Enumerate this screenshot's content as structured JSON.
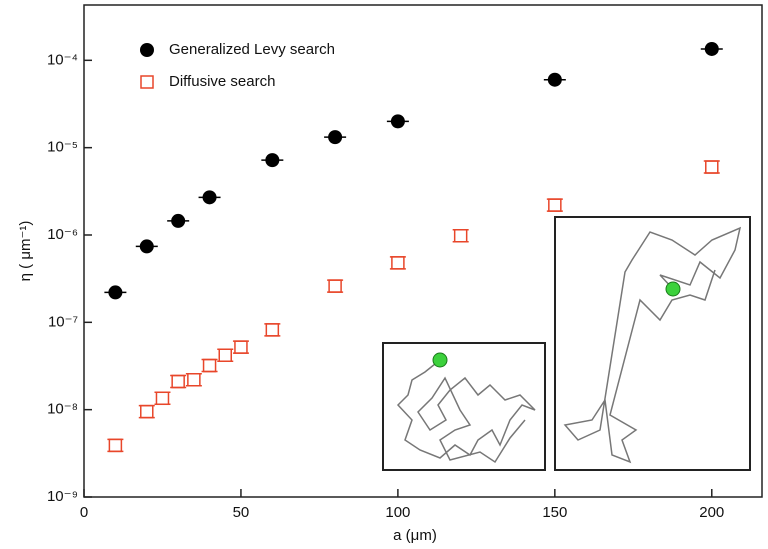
{
  "chart_data": {
    "type": "scatter",
    "xlabel": "a (μm)",
    "ylabel": "η ( μm⁻¹)",
    "xlim": [
      0,
      216
    ],
    "xticks": [
      0,
      50,
      100,
      150,
      200
    ],
    "ylim": [
      1e-09,
      0.00043
    ],
    "log_y": true,
    "yticks": [
      {
        "value": 1e-09,
        "label": "10⁻⁹"
      },
      {
        "value": 1e-08,
        "label": "10⁻⁸"
      },
      {
        "value": 1e-07,
        "label": "10⁻⁷"
      },
      {
        "value": 1e-06,
        "label": "10⁻⁶"
      },
      {
        "value": 1e-05,
        "label": "10⁻⁵"
      },
      {
        "value": 0.0001,
        "label": "10⁻⁴"
      }
    ],
    "legend": "upper left",
    "series": [
      {
        "name": "Generalized Levy search",
        "color": "#000000",
        "marker": "circle",
        "x": [
          10,
          20,
          30,
          40,
          60,
          80,
          100,
          150,
          200
        ],
        "values": [
          2.2e-07,
          7.4e-07,
          1.45e-06,
          2.7e-06,
          7.2e-06,
          1.32e-05,
          2e-05,
          6e-05,
          0.000135
        ]
      },
      {
        "name": "Diffusive search",
        "color": "#e8462a",
        "marker": "square",
        "x": [
          10,
          20,
          25,
          30,
          35,
          40,
          45,
          50,
          60,
          80,
          100,
          120,
          150,
          200
        ],
        "values": [
          3.9e-09,
          9.5e-09,
          1.35e-08,
          2.1e-08,
          2.2e-08,
          3.2e-08,
          4.2e-08,
          5.2e-08,
          8.2e-08,
          2.6e-07,
          4.8e-07,
          9.8e-07,
          2.2e-06,
          6e-06
        ]
      }
    ]
  }
}
